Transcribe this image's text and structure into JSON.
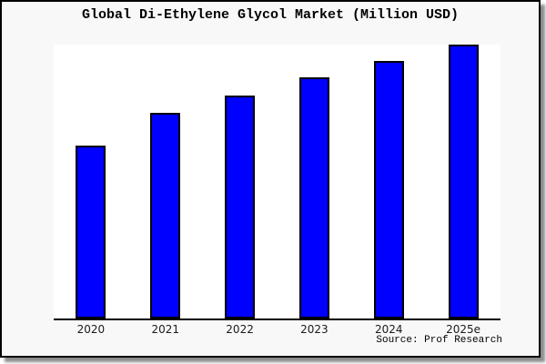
{
  "title": "Global Di-Ethylene Glycol Market (Million USD)",
  "source": "Source: Prof Research",
  "colors": {
    "page_background": "#ffffff",
    "frame_background": "#f8f8f8",
    "frame_border": "#000000",
    "bar_fill": "#0000ff",
    "bar_border": "#000000",
    "axis": "#000000",
    "plot_background": "#ffffff"
  },
  "chart_data": {
    "type": "bar",
    "title": "Global Di-Ethylene Glycol Market (Million USD)",
    "categories": [
      "2020",
      "2021",
      "2022",
      "2023",
      "2024",
      "2025e"
    ],
    "values": [
      63,
      75,
      81.5,
      88,
      94,
      100
    ],
    "value_note": "no y-axis scale shown; values estimated as percent of tallest bar (2025e = 100)",
    "xlabel": "",
    "ylabel": "",
    "ylim": [
      0,
      100
    ],
    "grid": false,
    "legend": false,
    "y_axis_visible": false,
    "bar_color": "#0000ff",
    "bar_border_color": "#000000",
    "axis_color": "#000000",
    "plot_background": "#ffffff",
    "annotation": "Source: Prof Research"
  }
}
